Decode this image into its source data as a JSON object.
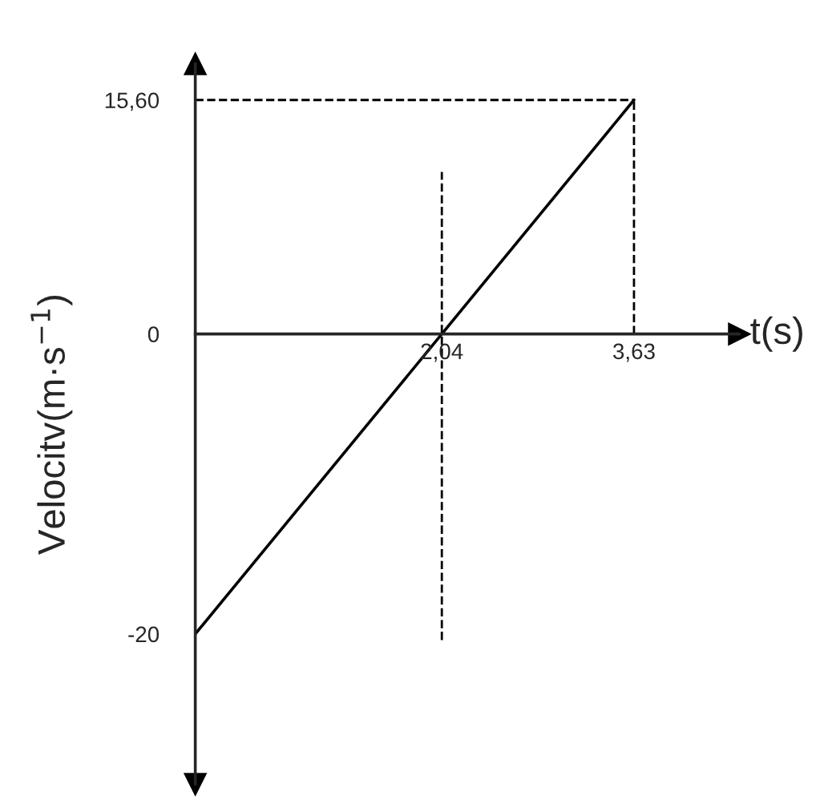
{
  "chart_data": {
    "type": "line",
    "xlabel": "t(s)",
    "ylabel": "Velocitv(m·s$^{−1}$)",
    "x": [
      0,
      2.04,
      3.63
    ],
    "series": [
      {
        "color": "#000000",
        "values": [
          -20,
          0,
          15.6
        ]
      }
    ],
    "xlim": [
      0,
      4.5
    ],
    "ylim": [
      -30,
      18
    ],
    "xticks": [
      {
        "value": 2.04,
        "label": "2,04"
      },
      {
        "value": 3.63,
        "label": "3,63"
      }
    ],
    "yticks": [
      {
        "value": 15.6,
        "label": "15,60"
      },
      0,
      -20
    ],
    "ref_lines": [
      {
        "axis": "y",
        "value": 15.6,
        "line_style": "dashed",
        "color": "#000000"
      },
      {
        "axis": "x",
        "value": 3.63,
        "line_style": "dashed",
        "color": "#000000"
      },
      {
        "axis": "x",
        "value": 2.04,
        "line_style": "dashed",
        "color": "#000000"
      }
    ],
    "grid": false,
    "legend": false,
    "marker": "none",
    "line_style": "solid"
  }
}
